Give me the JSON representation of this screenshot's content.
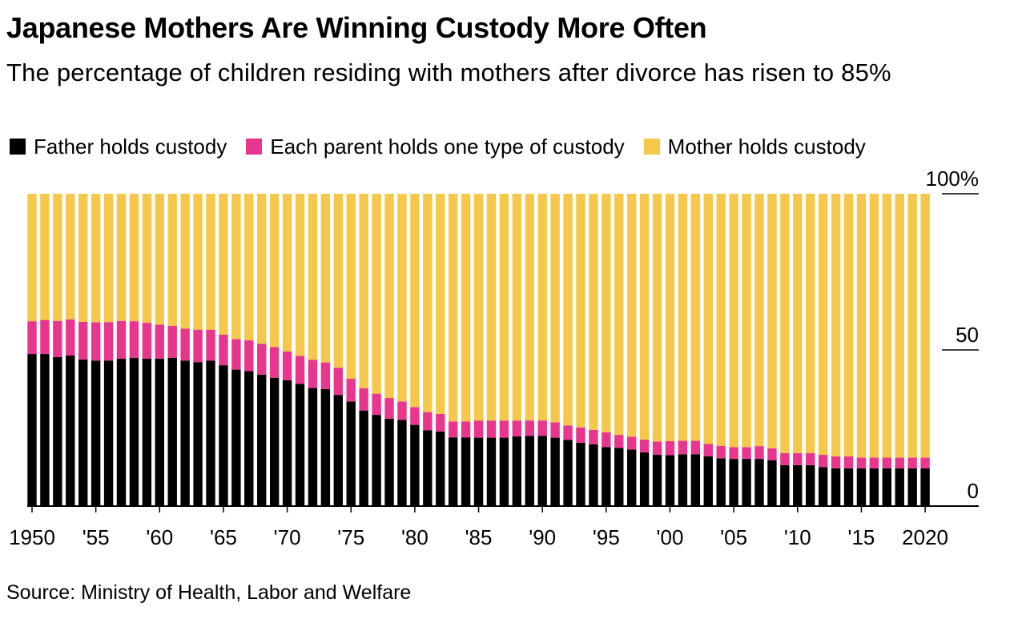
{
  "chart_data": {
    "type": "bar",
    "stacked": true,
    "title": "Japanese Mothers Are Winning Custody More Often",
    "subtitle": "The percentage of children residing with mothers after divorce has risen to 85%",
    "source": "Source: Ministry of Health, Labor and Welfare",
    "ylim": [
      0,
      100
    ],
    "y_ticks": [
      {
        "value": 0,
        "label": "0"
      },
      {
        "value": 50,
        "label": "50"
      },
      {
        "value": 100,
        "label": "100%"
      }
    ],
    "x_ticks": [
      {
        "year": 1950,
        "label": "1950"
      },
      {
        "year": 1955,
        "label": "'55"
      },
      {
        "year": 1960,
        "label": "'60"
      },
      {
        "year": 1965,
        "label": "'65"
      },
      {
        "year": 1970,
        "label": "'70"
      },
      {
        "year": 1975,
        "label": "'75"
      },
      {
        "year": 1980,
        "label": "'80"
      },
      {
        "year": 1985,
        "label": "'85"
      },
      {
        "year": 1990,
        "label": "'90"
      },
      {
        "year": 1995,
        "label": "'95"
      },
      {
        "year": 2000,
        "label": "'00"
      },
      {
        "year": 2005,
        "label": "'05"
      },
      {
        "year": 2010,
        "label": "'10"
      },
      {
        "year": 2015,
        "label": "'15"
      },
      {
        "year": 2020,
        "label": "2020"
      }
    ],
    "categories": [
      1950,
      1951,
      1952,
      1953,
      1954,
      1955,
      1956,
      1957,
      1958,
      1959,
      1960,
      1961,
      1962,
      1963,
      1964,
      1965,
      1966,
      1967,
      1968,
      1969,
      1970,
      1971,
      1972,
      1973,
      1974,
      1975,
      1976,
      1977,
      1978,
      1979,
      1980,
      1981,
      1982,
      1983,
      1984,
      1985,
      1986,
      1987,
      1988,
      1989,
      1990,
      1991,
      1992,
      1993,
      1994,
      1995,
      1996,
      1997,
      1998,
      1999,
      2000,
      2001,
      2002,
      2003,
      2004,
      2005,
      2006,
      2007,
      2008,
      2009,
      2010,
      2011,
      2012,
      2013,
      2014,
      2015,
      2016,
      2017,
      2018,
      2019,
      2020
    ],
    "series": [
      {
        "name": "Father holds custody",
        "color": "#000000",
        "values": [
          48.7,
          48.7,
          47.7,
          48.2,
          46.9,
          46.6,
          46.6,
          47.2,
          47.5,
          47.2,
          47.2,
          47.5,
          46.6,
          46.1,
          46.6,
          45.1,
          43.7,
          43.2,
          42.1,
          41.1,
          40.3,
          39.1,
          37.8,
          37.5,
          35.6,
          33.5,
          30.6,
          29.2,
          28.0,
          27.6,
          26.0,
          24.3,
          23.9,
          22.0,
          22.0,
          21.9,
          21.9,
          21.9,
          22.3,
          22.5,
          22.5,
          21.9,
          21.2,
          20.3,
          19.8,
          18.9,
          18.6,
          18.1,
          17.2,
          16.4,
          16.3,
          16.6,
          16.6,
          15.9,
          15.3,
          15.1,
          15.1,
          15.1,
          14.7,
          13.1,
          13.1,
          13.1,
          12.5,
          12.1,
          12.1,
          12.1,
          12.1,
          12.1,
          12.1,
          12.1,
          12.1
        ]
      },
      {
        "name": "Each parent holds one type of custody",
        "color": "#e8368f",
        "values": [
          10.5,
          10.9,
          11.6,
          11.6,
          12.1,
          12.3,
          12.3,
          12.1,
          11.7,
          11.5,
          10.9,
          10.2,
          10.2,
          10.4,
          9.9,
          9.8,
          9.8,
          9.9,
          9.9,
          9.8,
          9.2,
          9.0,
          9.0,
          8.5,
          8.7,
          7.3,
          7.1,
          6.8,
          6.6,
          5.9,
          5.7,
          5.8,
          5.6,
          5.1,
          5.1,
          5.5,
          5.5,
          5.5,
          5.1,
          4.9,
          4.9,
          4.9,
          4.6,
          4.9,
          4.6,
          4.7,
          4.2,
          4.1,
          4.1,
          4.3,
          4.5,
          4.3,
          4.3,
          4.0,
          4.0,
          3.8,
          3.8,
          4.1,
          3.8,
          3.9,
          3.9,
          3.9,
          3.9,
          3.8,
          3.8,
          3.4,
          3.4,
          3.4,
          3.4,
          3.4,
          3.4
        ]
      },
      {
        "name": "Mother holds custody",
        "color": "#f5c84c",
        "values": [
          40.8,
          40.4,
          40.7,
          40.2,
          41.0,
          41.1,
          41.1,
          40.7,
          40.8,
          41.3,
          41.9,
          42.3,
          43.2,
          43.5,
          43.5,
          45.1,
          46.5,
          46.9,
          48.0,
          49.1,
          50.5,
          51.9,
          53.2,
          54.0,
          55.7,
          59.2,
          62.3,
          64.0,
          65.4,
          66.5,
          68.3,
          69.9,
          70.5,
          72.9,
          72.9,
          72.6,
          72.6,
          72.6,
          72.6,
          72.6,
          72.6,
          73.2,
          74.2,
          74.8,
          75.6,
          76.4,
          77.2,
          77.8,
          78.7,
          79.3,
          79.2,
          79.1,
          79.1,
          80.1,
          80.7,
          81.1,
          81.1,
          80.8,
          81.5,
          83.0,
          83.0,
          83.0,
          83.6,
          84.1,
          84.1,
          84.5,
          84.5,
          84.5,
          84.5,
          84.5,
          84.5
        ]
      }
    ]
  }
}
